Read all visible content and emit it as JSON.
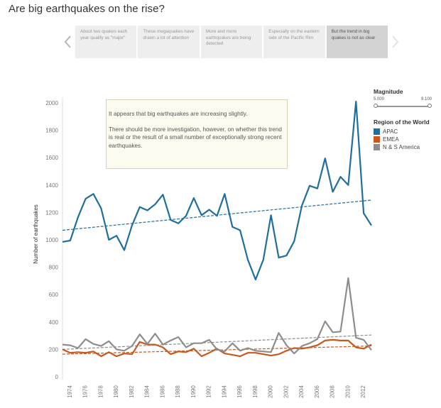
{
  "page": {
    "title": "Are big earthquakes on the rise?"
  },
  "nav": {
    "cards": [
      {
        "text": "About two quakes each year qualify as \"major\"",
        "active": false
      },
      {
        "text": "These megaquakes have drawn a lot of attention",
        "active": false
      },
      {
        "text": "More and more earthquakes are being detected",
        "active": false
      },
      {
        "text": "Especially on the eastern side of the Pacific Rim",
        "active": false
      },
      {
        "text": "But the trend in big quakes is not as clear",
        "active": true
      }
    ]
  },
  "annotation": {
    "line1": "It appears that big earthquakes are increasing slightly.",
    "line2": "There should be more investigation, however, on whether this trend is real or the result of a small number of exceptionally strong recent earthquakes."
  },
  "legend": {
    "magnitude_title": "Magnitude",
    "magnitude_min": "5.000",
    "magnitude_max": "9.100",
    "region_title": "Region of the World"
  },
  "chart_data": {
    "type": "line",
    "title": "Are big earthquakes on the rise?",
    "ylabel": "Number of earthquakes",
    "xlabel": "",
    "xlim": [
      1973,
      2013
    ],
    "ylim": [
      0,
      2000
    ],
    "y_ticks": [
      0,
      200,
      400,
      600,
      800,
      1000,
      1200,
      1400,
      1600,
      1800,
      2000
    ],
    "x_ticks": [
      1974,
      1976,
      1978,
      1980,
      1982,
      1984,
      1986,
      1988,
      1990,
      1992,
      1994,
      1996,
      1998,
      2000,
      2002,
      2004,
      2006,
      2008,
      2010,
      2012
    ],
    "x": [
      1973,
      1974,
      1975,
      1976,
      1977,
      1978,
      1979,
      1980,
      1981,
      1982,
      1983,
      1984,
      1985,
      1986,
      1987,
      1988,
      1989,
      1990,
      1991,
      1992,
      1993,
      1994,
      1995,
      1996,
      1997,
      1998,
      1999,
      2000,
      2001,
      2002,
      2003,
      2004,
      2005,
      2006,
      2007,
      2008,
      2009,
      2010,
      2011,
      2012,
      2013
    ],
    "grid": false,
    "legend_position": "right",
    "series": [
      {
        "name": "APAC",
        "color": "#1f6e9c",
        "values": [
          985,
          995,
          1165,
          1300,
          1335,
          1230,
          1000,
          1030,
          925,
          1105,
          1240,
          1215,
          1260,
          1330,
          1145,
          1120,
          1175,
          1305,
          1180,
          1220,
          1175,
          1335,
          1095,
          1070,
          855,
          710,
          855,
          1180,
          870,
          885,
          990,
          1250,
          1395,
          1375,
          1595,
          1350,
          1460,
          1400,
          2010,
          1195,
          1105
        ],
        "trend": [
          1070,
          1290
        ]
      },
      {
        "name": "EMEA",
        "color": "#c8581b",
        "values": [
          200,
          175,
          180,
          175,
          185,
          150,
          180,
          150,
          170,
          165,
          255,
          235,
          235,
          215,
          165,
          185,
          180,
          205,
          150,
          175,
          205,
          170,
          160,
          150,
          175,
          175,
          165,
          155,
          165,
          190,
          210,
          205,
          215,
          230,
          265,
          270,
          265,
          265,
          215,
          205,
          235
        ],
        "trend": [
          165,
          225
        ]
      },
      {
        "name": "N & S America",
        "color": "#8d8d8d",
        "values": [
          235,
          230,
          210,
          275,
          240,
          225,
          260,
          200,
          190,
          225,
          310,
          240,
          315,
          235,
          265,
          290,
          215,
          245,
          245,
          270,
          200,
          185,
          245,
          190,
          210,
          190,
          185,
          180,
          320,
          230,
          170,
          225,
          245,
          275,
          405,
          325,
          330,
          720,
          285,
          270,
          195
        ],
        "trend": [
          200,
          305
        ]
      }
    ]
  }
}
